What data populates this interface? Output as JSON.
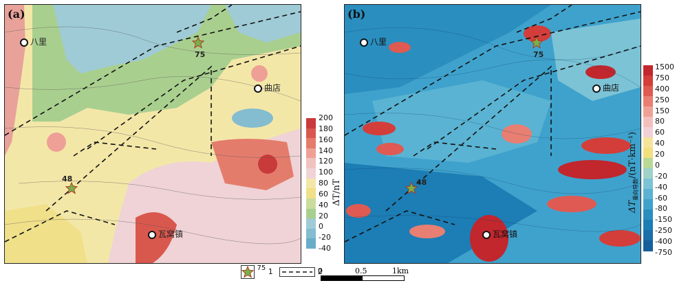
{
  "panels": {
    "a": {
      "label": "(a)",
      "colorbar_title": "ΔT/nT",
      "colorbar_ticks": [
        "200",
        "180",
        "160",
        "140",
        "120",
        "100",
        "80",
        "60",
        "40",
        "20",
        "0",
        "-20",
        "-40"
      ]
    },
    "b": {
      "label": "(b)",
      "colorbar_title_main": "ΔT",
      "colorbar_title_sub": "垂向导数",
      "colorbar_title_unit": "/(nT·km⁻¹)",
      "colorbar_ticks": [
        "1500",
        "750",
        "400",
        "250",
        "150",
        "80",
        "60",
        "40",
        "20",
        "0",
        "-20",
        "-40",
        "-60",
        "-80",
        "-150",
        "-250",
        "-400",
        "-750"
      ]
    }
  },
  "places": {
    "bali": "八里",
    "qudian": "曲店",
    "wawozhen": "瓦窝镇"
  },
  "points": {
    "p75": "75",
    "p48": "48"
  },
  "legend": {
    "item1_num": "75",
    "item1_idx": "1",
    "item2_idx": "2"
  },
  "scale": {
    "t0": "0",
    "t1": "0.5",
    "t2": "1km"
  },
  "colors": {
    "ramp_a": [
      "#c93a3a",
      "#d9584e",
      "#e47c6c",
      "#eea096",
      "#f1c2bf",
      "#efd3d6",
      "#f3e7a8",
      "#f0e089",
      "#c9dc9d",
      "#a9cf8f",
      "#9fcbd6",
      "#84bcd0",
      "#6aadc8"
    ],
    "ramp_b": [
      "#c1272d",
      "#d33e3b",
      "#df5a52",
      "#e87f72",
      "#f0a196",
      "#f3bfbd",
      "#f2d0d6",
      "#f5e49a",
      "#f1e07d",
      "#b9d997",
      "#9fd2c8",
      "#7cc3d6",
      "#5ab3d2",
      "#3fa2cc",
      "#2a8ebf",
      "#1d7db5",
      "#1a6ea9",
      "#165f9c"
    ],
    "fault": "#111111",
    "star": "#7ab04a"
  }
}
